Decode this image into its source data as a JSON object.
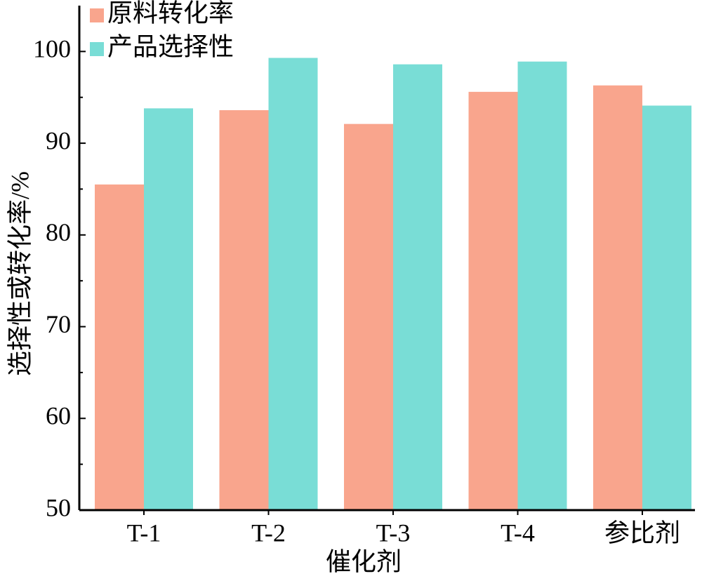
{
  "chart_data": {
    "type": "bar",
    "x_label": "催化剂",
    "y_label": "选择性或转化率/%",
    "categories": [
      "T-1",
      "T-2",
      "T-3",
      "T-4",
      "参比剂"
    ],
    "series": [
      {
        "name": "原料转化率",
        "color": "#f9a58d",
        "values": [
          85.5,
          93.6,
          92.1,
          95.6,
          96.3
        ]
      },
      {
        "name": "产品选择性",
        "color": "#79ddd6",
        "values": [
          93.8,
          99.3,
          98.6,
          98.9,
          94.1
        ]
      }
    ],
    "ylim": [
      50,
      105
    ],
    "yticks": [
      50,
      60,
      70,
      80,
      90,
      100
    ],
    "legend": "upper-left"
  }
}
